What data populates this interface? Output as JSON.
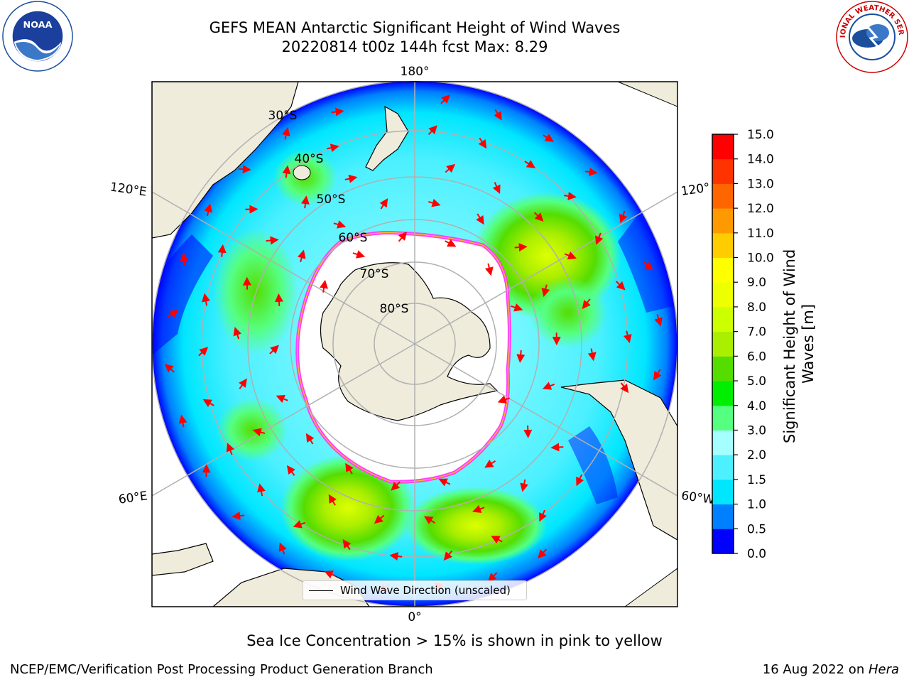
{
  "title": {
    "line1": "GEFS MEAN Antarctic Significant Height of Wind Waves",
    "line2": "20220814 t00z 144h fcst   Max: 8.29"
  },
  "logos": {
    "left": "NOAA",
    "right_text": "NATIONAL WEATHER SERVICE"
  },
  "map": {
    "projection": "south-polar-stereographic",
    "longitude_labels": {
      "top": "180°",
      "bottom": "0°",
      "upper_left": "120°E",
      "upper_right": "120°",
      "lower_left": "60°E",
      "lower_right": "60°W"
    },
    "latitude_labels": [
      "30°S",
      "40°S",
      "50°S",
      "60°S",
      "70°S",
      "80°S"
    ],
    "legend_label": "Wind Wave Direction (unscaled)",
    "colors": {
      "land": "#efecdc",
      "sea_ice": "#ffffff",
      "sea_ice_edge": "#ff40ff",
      "arrow": "#ff0000",
      "grid": "#b0b0b0"
    }
  },
  "colorbar": {
    "title_line1": "Significant Height of Wind",
    "title_line2": "Waves [m]",
    "ticks": [
      "0.0",
      "0.5",
      "1.0",
      "1.5",
      "2.0",
      "3.0",
      "4.0",
      "5.0",
      "6.0",
      "7.0",
      "8.0",
      "9.0",
      "10.0",
      "11.0",
      "12.0",
      "13.0",
      "14.0",
      "15.0"
    ],
    "colors": [
      "#0000ff",
      "#0080ff",
      "#00e6ff",
      "#4cf0ff",
      "#a6ffff",
      "#55ff80",
      "#00ee00",
      "#55dd00",
      "#aaee00",
      "#ccff00",
      "#eeff00",
      "#ffff00",
      "#ffcc00",
      "#ff9900",
      "#ff6600",
      "#ff3300",
      "#ff0000"
    ]
  },
  "chart_data": {
    "type": "heatmap",
    "title": "GEFS MEAN Antarctic Significant Height of Wind Waves",
    "subtitle": "20220814 t00z 144h fcst   Max: 8.29",
    "colorbar_label": "Significant Height of Wind Waves [m]",
    "colorbar_range": [
      0.0,
      15.0
    ],
    "max_value": 8.29
  },
  "footer": {
    "note": "Sea Ice Concentration > 15% is shown in pink to yellow",
    "left": "NCEP/EMC/Verification Post Processing Product Generation Branch",
    "right_date": "16 Aug 2022 on ",
    "right_machine": "Hera"
  }
}
